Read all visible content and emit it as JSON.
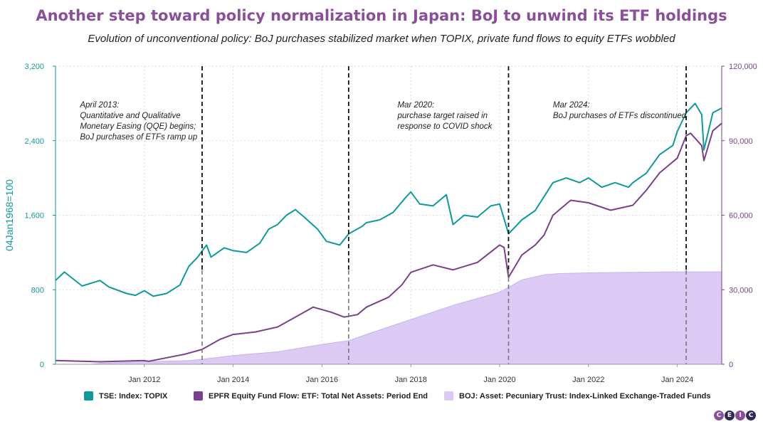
{
  "header": {
    "title": "Another step toward policy normalization in Japan: BoJ to unwind its ETF holdings",
    "subtitle": "Evolution of unconventional policy: BoJ purchases stabilized market when TOPIX, private fund flows to equity ETFs wobbled"
  },
  "logo": {
    "letters": [
      "C",
      "E",
      "I",
      "C"
    ]
  },
  "colors": {
    "topix": "#0f9a9a",
    "epfr": "#7b3f8c",
    "boj": "#dccaf5",
    "boj_line": "#c8b2ec",
    "title": "#8a4f9a"
  },
  "chart_data": {
    "type": "line",
    "x_range": [
      "2010-01-01",
      "2025-01-01"
    ],
    "x_ticks": [
      "Jan 2012",
      "Jan 2014",
      "Jan 2016",
      "Jan 2018",
      "Jan 2020",
      "Jan 2022",
      "Jan 2024"
    ],
    "x_tick_values": [
      2012.0,
      2014.0,
      2016.0,
      2018.0,
      2020.0,
      2022.0,
      2024.0
    ],
    "y_left": {
      "label": "04Jan1968=100",
      "range": [
        0,
        3200
      ],
      "ticks": [
        "0",
        "800",
        "1,600",
        "2,400",
        "3,200"
      ],
      "tick_values": [
        0,
        800,
        1600,
        2400,
        3200
      ]
    },
    "y_right": {
      "label": "",
      "range": [
        0,
        120000
      ],
      "ticks": [
        "0",
        "30,000",
        "60,000",
        "90,000",
        "120,000"
      ],
      "tick_values": [
        0,
        30000,
        60000,
        90000,
        120000
      ]
    },
    "grid": true,
    "legend_position": "bottom",
    "series": [
      {
        "name": "TSE: Index: TOPIX",
        "axis": "left",
        "style": "line",
        "x": [
          2010.0,
          2010.2,
          2010.6,
          2011.0,
          2011.2,
          2011.6,
          2011.8,
          2012.0,
          2012.2,
          2012.5,
          2012.8,
          2013.0,
          2013.2,
          2013.4,
          2013.5,
          2013.8,
          2014.0,
          2014.3,
          2014.6,
          2014.8,
          2015.0,
          2015.2,
          2015.4,
          2015.6,
          2015.9,
          2016.1,
          2016.4,
          2016.6,
          2016.9,
          2017.0,
          2017.3,
          2017.6,
          2017.9,
          2018.0,
          2018.2,
          2018.5,
          2018.8,
          2018.95,
          2019.2,
          2019.5,
          2019.8,
          2020.0,
          2020.2,
          2020.5,
          2020.8,
          2021.0,
          2021.2,
          2021.5,
          2021.8,
          2022.0,
          2022.3,
          2022.6,
          2022.9,
          2023.0,
          2023.3,
          2023.6,
          2023.9,
          2024.0,
          2024.2,
          2024.4,
          2024.55,
          2024.6,
          2024.8,
          2025.0
        ],
        "y": [
          900,
          990,
          840,
          900,
          830,
          760,
          740,
          790,
          730,
          760,
          850,
          1050,
          1150,
          1280,
          1150,
          1250,
          1220,
          1200,
          1300,
          1450,
          1500,
          1600,
          1660,
          1580,
          1450,
          1320,
          1280,
          1400,
          1480,
          1520,
          1550,
          1630,
          1800,
          1850,
          1720,
          1700,
          1820,
          1500,
          1600,
          1580,
          1700,
          1720,
          1400,
          1550,
          1650,
          1800,
          1950,
          2000,
          1950,
          2000,
          1900,
          1950,
          1900,
          1950,
          2050,
          2250,
          2350,
          2500,
          2700,
          2800,
          2680,
          2300,
          2700,
          2750
        ]
      },
      {
        "name": "EPFR Equity Fund Flow: ETF: Total Net Assets: Period End",
        "axis": "right",
        "style": "line",
        "x": [
          2010.0,
          2011.0,
          2012.0,
          2012.1,
          2012.9,
          2013.0,
          2013.3,
          2013.7,
          2014.0,
          2014.5,
          2015.0,
          2015.5,
          2015.8,
          2016.2,
          2016.5,
          2016.8,
          2017.0,
          2017.5,
          2017.8,
          2018.0,
          2018.5,
          2018.95,
          2019.5,
          2020.0,
          2020.1,
          2020.2,
          2020.5,
          2020.8,
          2021.0,
          2021.2,
          2021.6,
          2022.0,
          2022.5,
          2023.0,
          2023.3,
          2023.6,
          2024.0,
          2024.2,
          2024.3,
          2024.55,
          2024.6,
          2024.8,
          2025.0
        ],
        "y": [
          1500,
          1000,
          1500,
          1200,
          4000,
          4500,
          6000,
          10000,
          12000,
          13000,
          15000,
          20000,
          23000,
          21000,
          19000,
          20000,
          23000,
          27000,
          32000,
          37000,
          40000,
          38000,
          41000,
          48000,
          47000,
          35000,
          44000,
          48000,
          52000,
          60000,
          66000,
          65000,
          62000,
          64000,
          70000,
          77000,
          83000,
          92000,
          93000,
          88000,
          82000,
          94000,
          97000
        ]
      },
      {
        "name": "BOJ: Asset: Pecuniary Trust: Index-Linked Exchange-Traded Funds",
        "axis": "right",
        "style": "area",
        "x": [
          2010.0,
          2010.8,
          2011.0,
          2012.0,
          2013.0,
          2013.3,
          2014.0,
          2015.0,
          2016.0,
          2016.6,
          2017.0,
          2018.0,
          2019.0,
          2020.0,
          2020.2,
          2020.5,
          2021.0,
          2021.3,
          2022.0,
          2023.0,
          2024.0,
          2024.2,
          2025.0
        ],
        "y": [
          0,
          0,
          400,
          1000,
          1500,
          2000,
          3500,
          5000,
          8000,
          9500,
          12000,
          18000,
          24000,
          29000,
          31000,
          34000,
          36000,
          36500,
          36800,
          37000,
          37200,
          37200,
          37200
        ]
      }
    ],
    "events": [
      {
        "x": 2013.3,
        "text": [
          "April 2013:",
          "Quantitative and Qualitative",
          "Monetary Easing (QQE) begins;",
          "BoJ purchases of ETFs ramp up"
        ],
        "text_x": 2010.55
      },
      {
        "x": 2016.6,
        "text": [],
        "text_x": 2016.6
      },
      {
        "x": 2020.2,
        "text": [
          "Mar 2020:",
          "purchase target raised in",
          "response to COVID shock"
        ],
        "text_x": 2017.7
      },
      {
        "x": 2024.2,
        "text": [
          "Mar 2024:",
          "BoJ purchases of ETFs discontinued"
        ],
        "text_x": 2021.2
      }
    ]
  }
}
